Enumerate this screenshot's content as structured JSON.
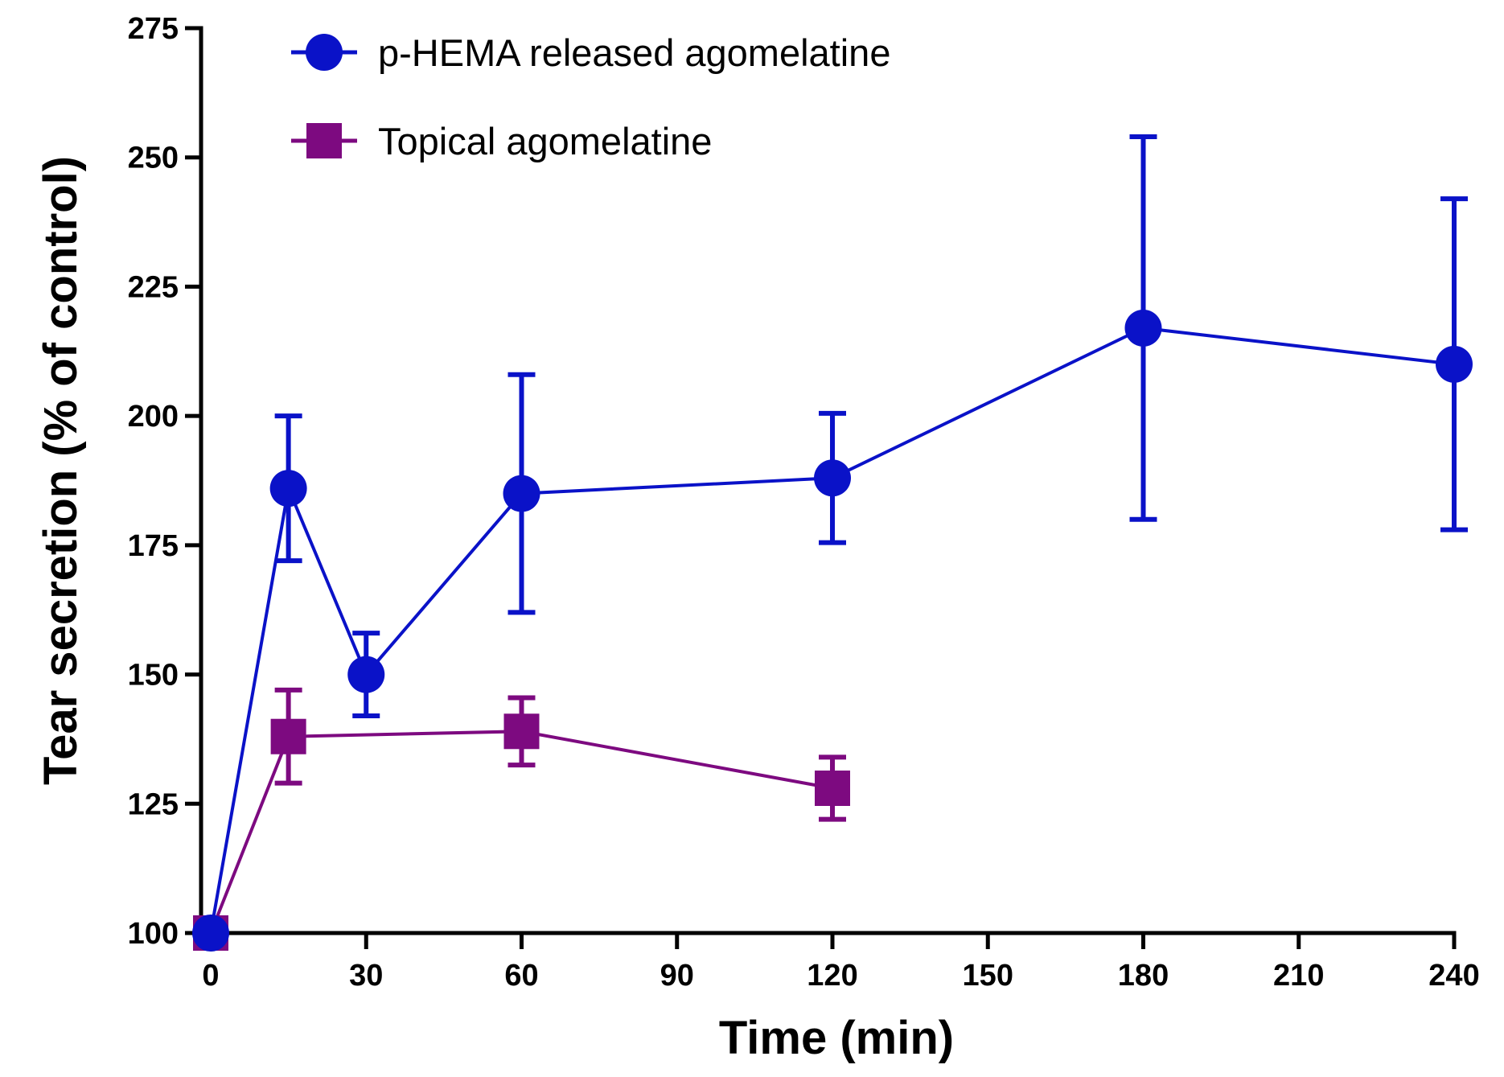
{
  "chart_data": {
    "type": "line",
    "title": "",
    "xlabel": "Time (min)",
    "ylabel": "Tear secretion (% of control)",
    "xlim": [
      0,
      240
    ],
    "ylim": [
      100,
      275
    ],
    "xticks": [
      0,
      30,
      60,
      90,
      120,
      150,
      180,
      210,
      240
    ],
    "yticks": [
      100,
      125,
      150,
      175,
      200,
      225,
      250,
      275
    ],
    "grid": false,
    "legend_position": "top-left",
    "series": [
      {
        "name": "p-HEMA released agomelatine",
        "color": "#0a12c8",
        "marker": "circle",
        "x": [
          0,
          15,
          30,
          60,
          120,
          180,
          240
        ],
        "y": [
          100,
          186,
          150,
          185,
          188,
          217,
          210
        ],
        "error": [
          0,
          14,
          8,
          23,
          12.5,
          37,
          32
        ]
      },
      {
        "name": "Topical agomelatine",
        "color": "#7d0a80",
        "marker": "square",
        "x": [
          0,
          15,
          60,
          120
        ],
        "y": [
          100,
          138,
          139,
          128
        ],
        "error": [
          0,
          9,
          6.5,
          6
        ]
      }
    ]
  }
}
